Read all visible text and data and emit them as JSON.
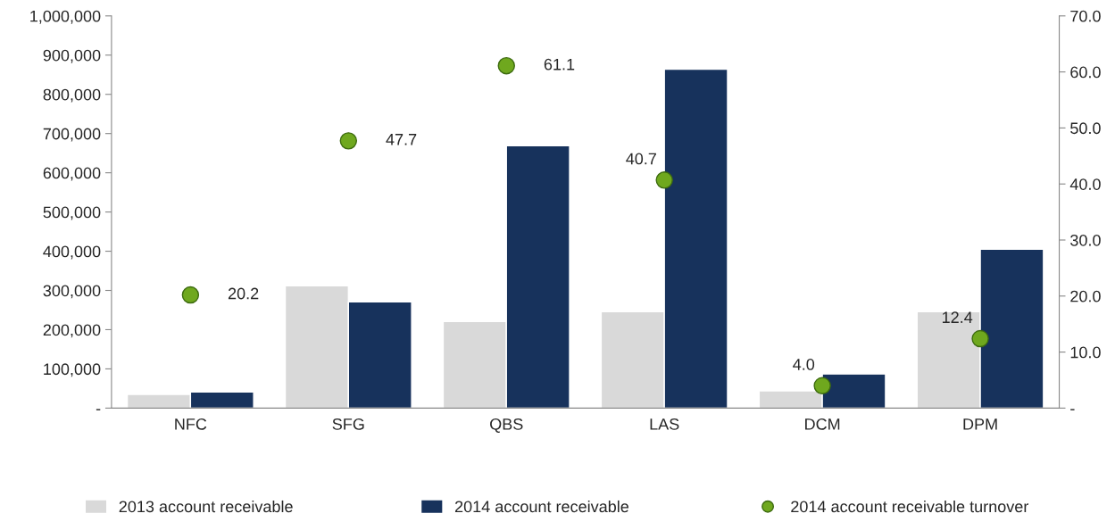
{
  "chart_data": {
    "type": "bar",
    "categories": [
      "NFC",
      "SFG",
      "QBS",
      "LAS",
      "DCM",
      "DPM"
    ],
    "series": [
      {
        "name": "2013 account receivable",
        "color": "#d9d9d9",
        "values": [
          35000,
          312000,
          221000,
          246000,
          44000,
          246000
        ]
      },
      {
        "name": "2014 account receivable",
        "color": "#17325c",
        "values": [
          41000,
          271000,
          669000,
          864000,
          87000,
          405000
        ]
      },
      {
        "name": "2014 account receivable turnover",
        "type": "scatter",
        "axis": "y2",
        "color": "#6fa81e",
        "marker": "circle",
        "values": [
          20.2,
          47.7,
          61.1,
          40.7,
          4.0,
          12.4
        ],
        "value_labels": [
          "20.2",
          "47.7",
          "61.1",
          "40.7",
          "4.0",
          "12.4"
        ]
      }
    ],
    "ylim": [
      0,
      1000000
    ],
    "yticks": [
      {
        "value": 0,
        "label": "-"
      },
      {
        "value": 100000,
        "label": "100,000"
      },
      {
        "value": 200000,
        "label": "200,000"
      },
      {
        "value": 300000,
        "label": "300,000"
      },
      {
        "value": 400000,
        "label": "400,000"
      },
      {
        "value": 500000,
        "label": "500,000"
      },
      {
        "value": 600000,
        "label": "600,000"
      },
      {
        "value": 700000,
        "label": "700,000"
      },
      {
        "value": 800000,
        "label": "800,000"
      },
      {
        "value": 900000,
        "label": "900,000"
      },
      {
        "value": 1000000,
        "label": "1,000,000"
      }
    ],
    "y2lim": [
      0,
      70
    ],
    "y2ticks": [
      {
        "value": 0,
        "label": "-"
      },
      {
        "value": 10,
        "label": "10.0"
      },
      {
        "value": 20,
        "label": "20.0"
      },
      {
        "value": 30,
        "label": "30.0"
      },
      {
        "value": 40,
        "label": "40.0"
      },
      {
        "value": 50,
        "label": "50.0"
      },
      {
        "value": 60,
        "label": "60.0"
      },
      {
        "value": 70,
        "label": "70.0"
      }
    ],
    "legend": "bottom",
    "grid": false
  }
}
